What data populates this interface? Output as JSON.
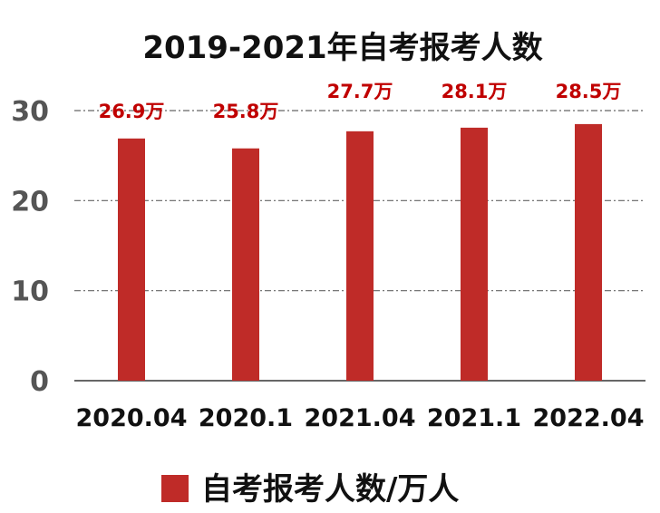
{
  "colors": {
    "bar": "#BF2B28",
    "label": "#C00000"
  },
  "chart_data": {
    "type": "bar",
    "title": "2019-2021年自考报考人数",
    "categories": [
      "2020.04",
      "2020.1",
      "2021.04",
      "2021.1",
      "2022.04"
    ],
    "series": [
      {
        "name": "自考报考人数/万人",
        "values": [
          26.9,
          25.8,
          27.7,
          28.1,
          28.5
        ]
      }
    ],
    "data_labels": [
      "26.9万",
      "25.8万",
      "27.7万",
      "28.1万",
      "28.5万"
    ],
    "yticks": [
      "0",
      "10",
      "20",
      "30"
    ],
    "ylim": [
      0,
      30
    ],
    "grid": true,
    "legend": "bottom"
  }
}
